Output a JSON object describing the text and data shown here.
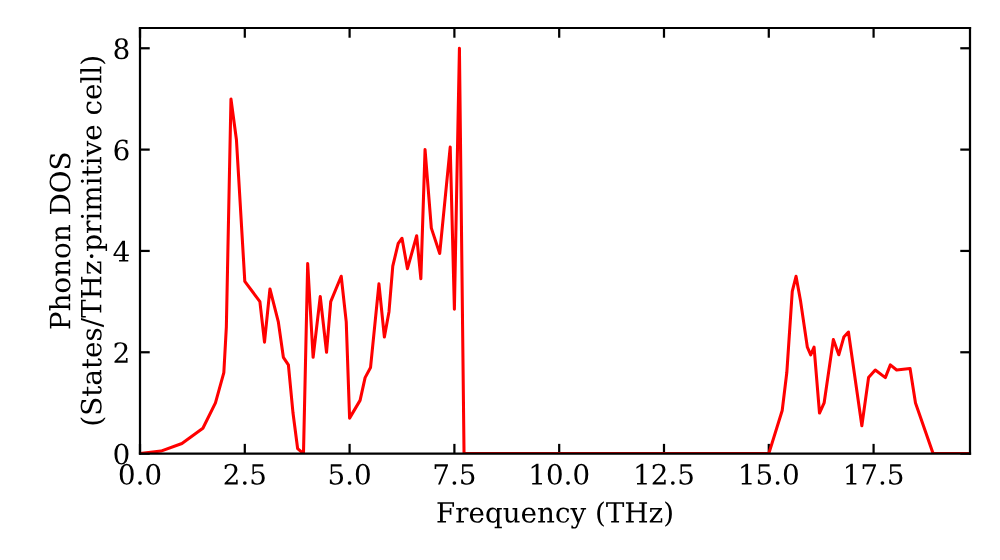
{
  "chart_data": {
    "type": "line",
    "xlabel": "Frequency (THz)",
    "ylabel": "Phonon DOS\n(States/THz·primitive cell)",
    "xlim": [
      0,
      19.8
    ],
    "ylim": [
      0,
      8.4
    ],
    "xticks": [
      {
        "value": 0,
        "label": "0.0"
      },
      {
        "value": 2.5,
        "label": "2.5"
      },
      {
        "value": 5,
        "label": "5.0"
      },
      {
        "value": 7.5,
        "label": "7.5"
      },
      {
        "value": 10,
        "label": "10.0"
      },
      {
        "value": 12.5,
        "label": "12.5"
      },
      {
        "value": 15,
        "label": "15.0"
      },
      {
        "value": 17.5,
        "label": "17.5"
      }
    ],
    "yticks": [
      0,
      2,
      4,
      6,
      8
    ],
    "marker": "none",
    "line_style": "solid",
    "series": [
      {
        "color": "#ff0000",
        "x": [
          0,
          0.5,
          1.0,
          1.5,
          1.8,
          2.0,
          2.06,
          2.17,
          2.3,
          2.5,
          2.86,
          2.97,
          3.1,
          3.3,
          3.42,
          3.54,
          3.65,
          3.76,
          3.9,
          4.0,
          4.13,
          4.3,
          4.45,
          4.55,
          4.8,
          4.92,
          5.0,
          5.25,
          5.37,
          5.5,
          5.7,
          5.83,
          5.94,
          6.03,
          6.16,
          6.25,
          6.38,
          6.6,
          6.7,
          6.8,
          6.95,
          7.15,
          7.4,
          7.5,
          7.62,
          7.73,
          15.0,
          15.32,
          15.43,
          15.56,
          15.65,
          15.76,
          15.92,
          16.0,
          16.08,
          16.21,
          16.32,
          16.54,
          16.67,
          16.79,
          16.9,
          17.22,
          17.38,
          17.54,
          17.78,
          17.9,
          18.05,
          18.37,
          18.5,
          18.92,
          19.8
        ],
        "values": [
          0,
          0.05,
          0.2,
          0.5,
          1.0,
          1.6,
          2.5,
          7.0,
          6.2,
          3.4,
          3.0,
          2.2,
          3.25,
          2.6,
          1.9,
          1.75,
          0.8,
          0.1,
          0,
          3.75,
          1.9,
          3.1,
          2.0,
          3.0,
          3.5,
          2.6,
          0.7,
          1.05,
          1.5,
          1.7,
          3.35,
          2.3,
          2.8,
          3.7,
          4.15,
          4.25,
          3.65,
          4.3,
          3.45,
          6.0,
          4.45,
          3.95,
          6.05,
          2.85,
          8.0,
          0,
          0,
          0.85,
          1.6,
          3.2,
          3.5,
          3.0,
          2.1,
          1.95,
          2.1,
          0.8,
          1.0,
          2.25,
          1.95,
          2.3,
          2.4,
          0.55,
          1.5,
          1.65,
          1.5,
          1.75,
          1.65,
          1.68,
          1.0,
          0,
          0
        ]
      }
    ]
  }
}
